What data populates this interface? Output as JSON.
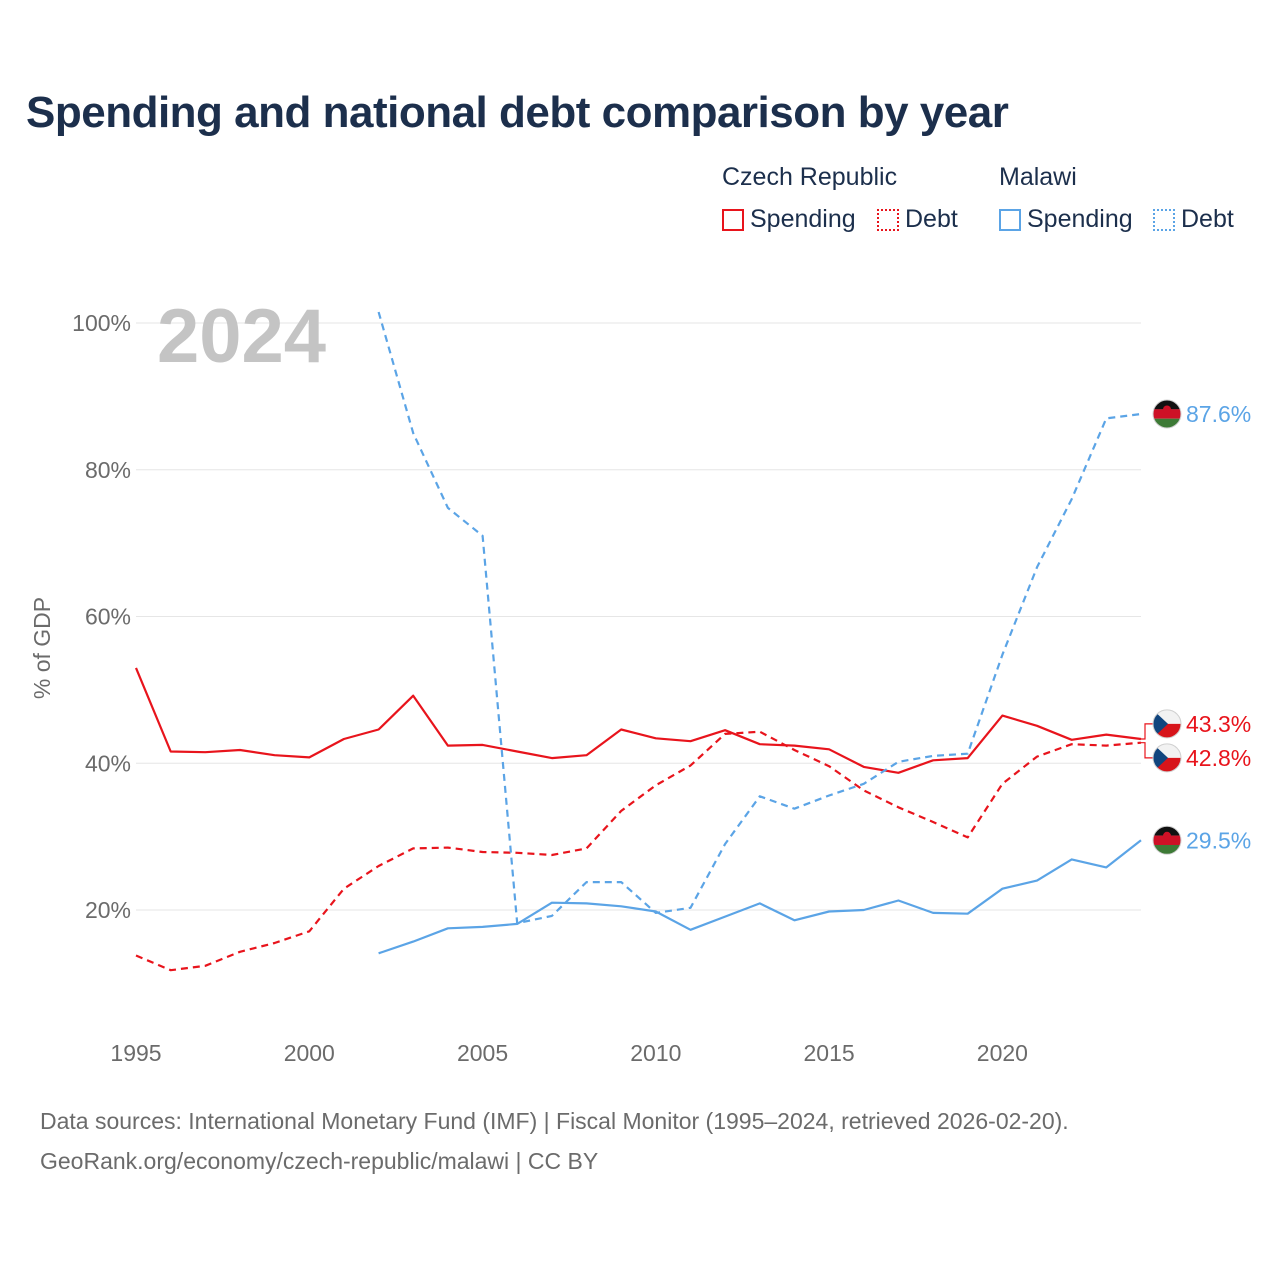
{
  "title": "Spending and national debt comparison by year",
  "legend": {
    "groups": [
      {
        "name": "Czech Republic",
        "color": "#e8141c",
        "items": [
          "Spending",
          "Debt"
        ]
      },
      {
        "name": "Malawi",
        "color": "#5ba4e6",
        "items": [
          "Spending",
          "Debt"
        ]
      }
    ]
  },
  "year_watermark": "2024",
  "footer": {
    "line1": "Data sources: International Monetary Fund (IMF) | Fiscal Monitor (1995–2024, retrieved 2026-02-20).",
    "line2": "GeoRank.org/economy/czech-republic/malawi | CC BY"
  },
  "chart_data": {
    "type": "line",
    "title": "Spending and national debt comparison by year",
    "xlabel": "",
    "ylabel": "% of GDP",
    "xlim": [
      1995,
      2024
    ],
    "ylim": [
      3,
      105
    ],
    "x_ticks": [
      1995,
      2000,
      2005,
      2010,
      2015,
      2020
    ],
    "y_ticks": [
      20,
      40,
      60,
      80,
      100
    ],
    "y_tick_labels": [
      "20%",
      "40%",
      "60%",
      "80%",
      "100%"
    ],
    "grid": true,
    "series": [
      {
        "name": "Czech Republic Spending",
        "country": "Czech Republic",
        "metric": "Spending",
        "color": "#e8141c",
        "dash": "solid",
        "x": [
          1995,
          1996,
          1997,
          1998,
          1999,
          2000,
          2001,
          2002,
          2003,
          2004,
          2005,
          2006,
          2007,
          2008,
          2009,
          2010,
          2011,
          2012,
          2013,
          2014,
          2015,
          2016,
          2017,
          2018,
          2019,
          2020,
          2021,
          2022,
          2023,
          2024
        ],
        "values": [
          53,
          41.6,
          41.5,
          41.8,
          41.1,
          40.8,
          43.3,
          44.6,
          49.2,
          42.4,
          42.5,
          41.6,
          40.7,
          41.1,
          44.6,
          43.4,
          43.0,
          44.5,
          42.6,
          42.4,
          41.9,
          39.5,
          38.7,
          40.4,
          40.7,
          46.5,
          45.1,
          43.2,
          43.9,
          43.3
        ],
        "end_label": "43.3%"
      },
      {
        "name": "Czech Republic Debt",
        "country": "Czech Republic",
        "metric": "Debt",
        "color": "#e8141c",
        "dash": "dashed",
        "x": [
          1995,
          1996,
          1997,
          1998,
          1999,
          2000,
          2001,
          2002,
          2003,
          2004,
          2005,
          2006,
          2007,
          2008,
          2009,
          2010,
          2011,
          2012,
          2013,
          2014,
          2015,
          2016,
          2017,
          2018,
          2019,
          2020,
          2021,
          2022,
          2023,
          2024
        ],
        "values": [
          13.8,
          11.8,
          12.4,
          14.3,
          15.5,
          17.1,
          22.9,
          26.0,
          28.4,
          28.5,
          27.9,
          27.8,
          27.5,
          28.4,
          33.5,
          37.0,
          39.7,
          44.0,
          44.3,
          41.8,
          39.6,
          36.3,
          34.0,
          32.0,
          29.9,
          37.2,
          40.9,
          42.6,
          42.4,
          42.8
        ],
        "end_label": "42.8%"
      },
      {
        "name": "Malawi Spending",
        "country": "Malawi",
        "metric": "Spending",
        "color": "#5ba4e6",
        "dash": "solid",
        "x": [
          2002,
          2003,
          2004,
          2005,
          2006,
          2007,
          2008,
          2009,
          2010,
          2011,
          2012,
          2013,
          2014,
          2015,
          2016,
          2017,
          2018,
          2019,
          2020,
          2021,
          2022,
          2023,
          2024
        ],
        "values": [
          14.1,
          15.7,
          17.5,
          17.7,
          18.1,
          21.0,
          20.9,
          20.5,
          19.8,
          17.3,
          19.1,
          20.9,
          18.6,
          19.8,
          20.0,
          21.3,
          19.6,
          19.5,
          22.9,
          24.0,
          26.9,
          25.8,
          29.5
        ],
        "end_label": "29.5%"
      },
      {
        "name": "Malawi Debt",
        "country": "Malawi",
        "metric": "Debt",
        "color": "#5ba4e6",
        "dash": "dashed",
        "x": [
          2002,
          2003,
          2004,
          2005,
          2006,
          2007,
          2008,
          2009,
          2010,
          2011,
          2012,
          2013,
          2014,
          2015,
          2016,
          2017,
          2018,
          2019,
          2020,
          2021,
          2022,
          2023,
          2024
        ],
        "values": [
          101.5,
          85,
          74.8,
          71,
          18.2,
          19.2,
          23.8,
          23.8,
          19.6,
          20.3,
          29.0,
          35.5,
          33.8,
          35.6,
          37.2,
          40.2,
          41.0,
          41.3,
          54.8,
          66.7,
          76.0,
          87.0,
          87.6
        ],
        "end_label": "87.6%"
      }
    ]
  }
}
